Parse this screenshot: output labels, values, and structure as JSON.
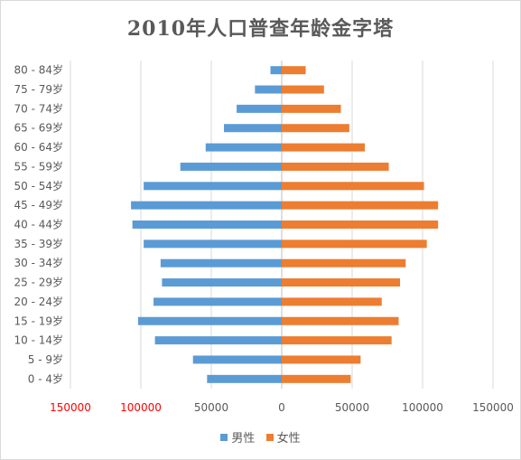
{
  "chart_data": {
    "type": "bar",
    "orientation": "horizontal",
    "title": "2010年人口普查年龄金字塔",
    "categories": [
      "0 - 4岁",
      "5 - 9岁",
      "10 - 14岁",
      "15 - 19岁",
      "20 - 24岁",
      "25 - 29岁",
      "30 - 34岁",
      "35 - 39岁",
      "40 - 44岁",
      "45 - 49岁",
      "50 - 54岁",
      "55 - 59岁",
      "60 - 64岁",
      "65 - 69岁",
      "70 - 74岁",
      "75 - 79岁",
      "80 - 84岁"
    ],
    "series": [
      {
        "name": "男性",
        "color": "#5b9bd5",
        "values": [
          -53000,
          -63000,
          -90000,
          -102000,
          -91000,
          -85000,
          -86000,
          -98000,
          -106000,
          -107000,
          -98000,
          -72000,
          -54000,
          -41000,
          -32000,
          -19000,
          -8000
        ]
      },
      {
        "name": "女性",
        "color": "#ed7d31",
        "values": [
          49000,
          56000,
          78000,
          83000,
          71000,
          84000,
          88000,
          103000,
          111000,
          111000,
          101000,
          76000,
          59000,
          48000,
          42000,
          30000,
          17000
        ]
      }
    ],
    "xlim": [
      -150000,
      150000
    ],
    "xticks": [
      {
        "value": -150000,
        "label": "150000",
        "color": "#ff0000"
      },
      {
        "value": -100000,
        "label": "100000",
        "color": "#ff0000"
      },
      {
        "value": -50000,
        "label": "50000",
        "color": "#595959"
      },
      {
        "value": 0,
        "label": "0",
        "color": "#595959"
      },
      {
        "value": 50000,
        "label": "50000",
        "color": "#595959"
      },
      {
        "value": 100000,
        "label": "100000",
        "color": "#595959"
      },
      {
        "value": 150000,
        "label": "150000",
        "color": "#595959"
      }
    ],
    "grid": true,
    "legend_position": "bottom",
    "xlabel": "",
    "ylabel": ""
  }
}
